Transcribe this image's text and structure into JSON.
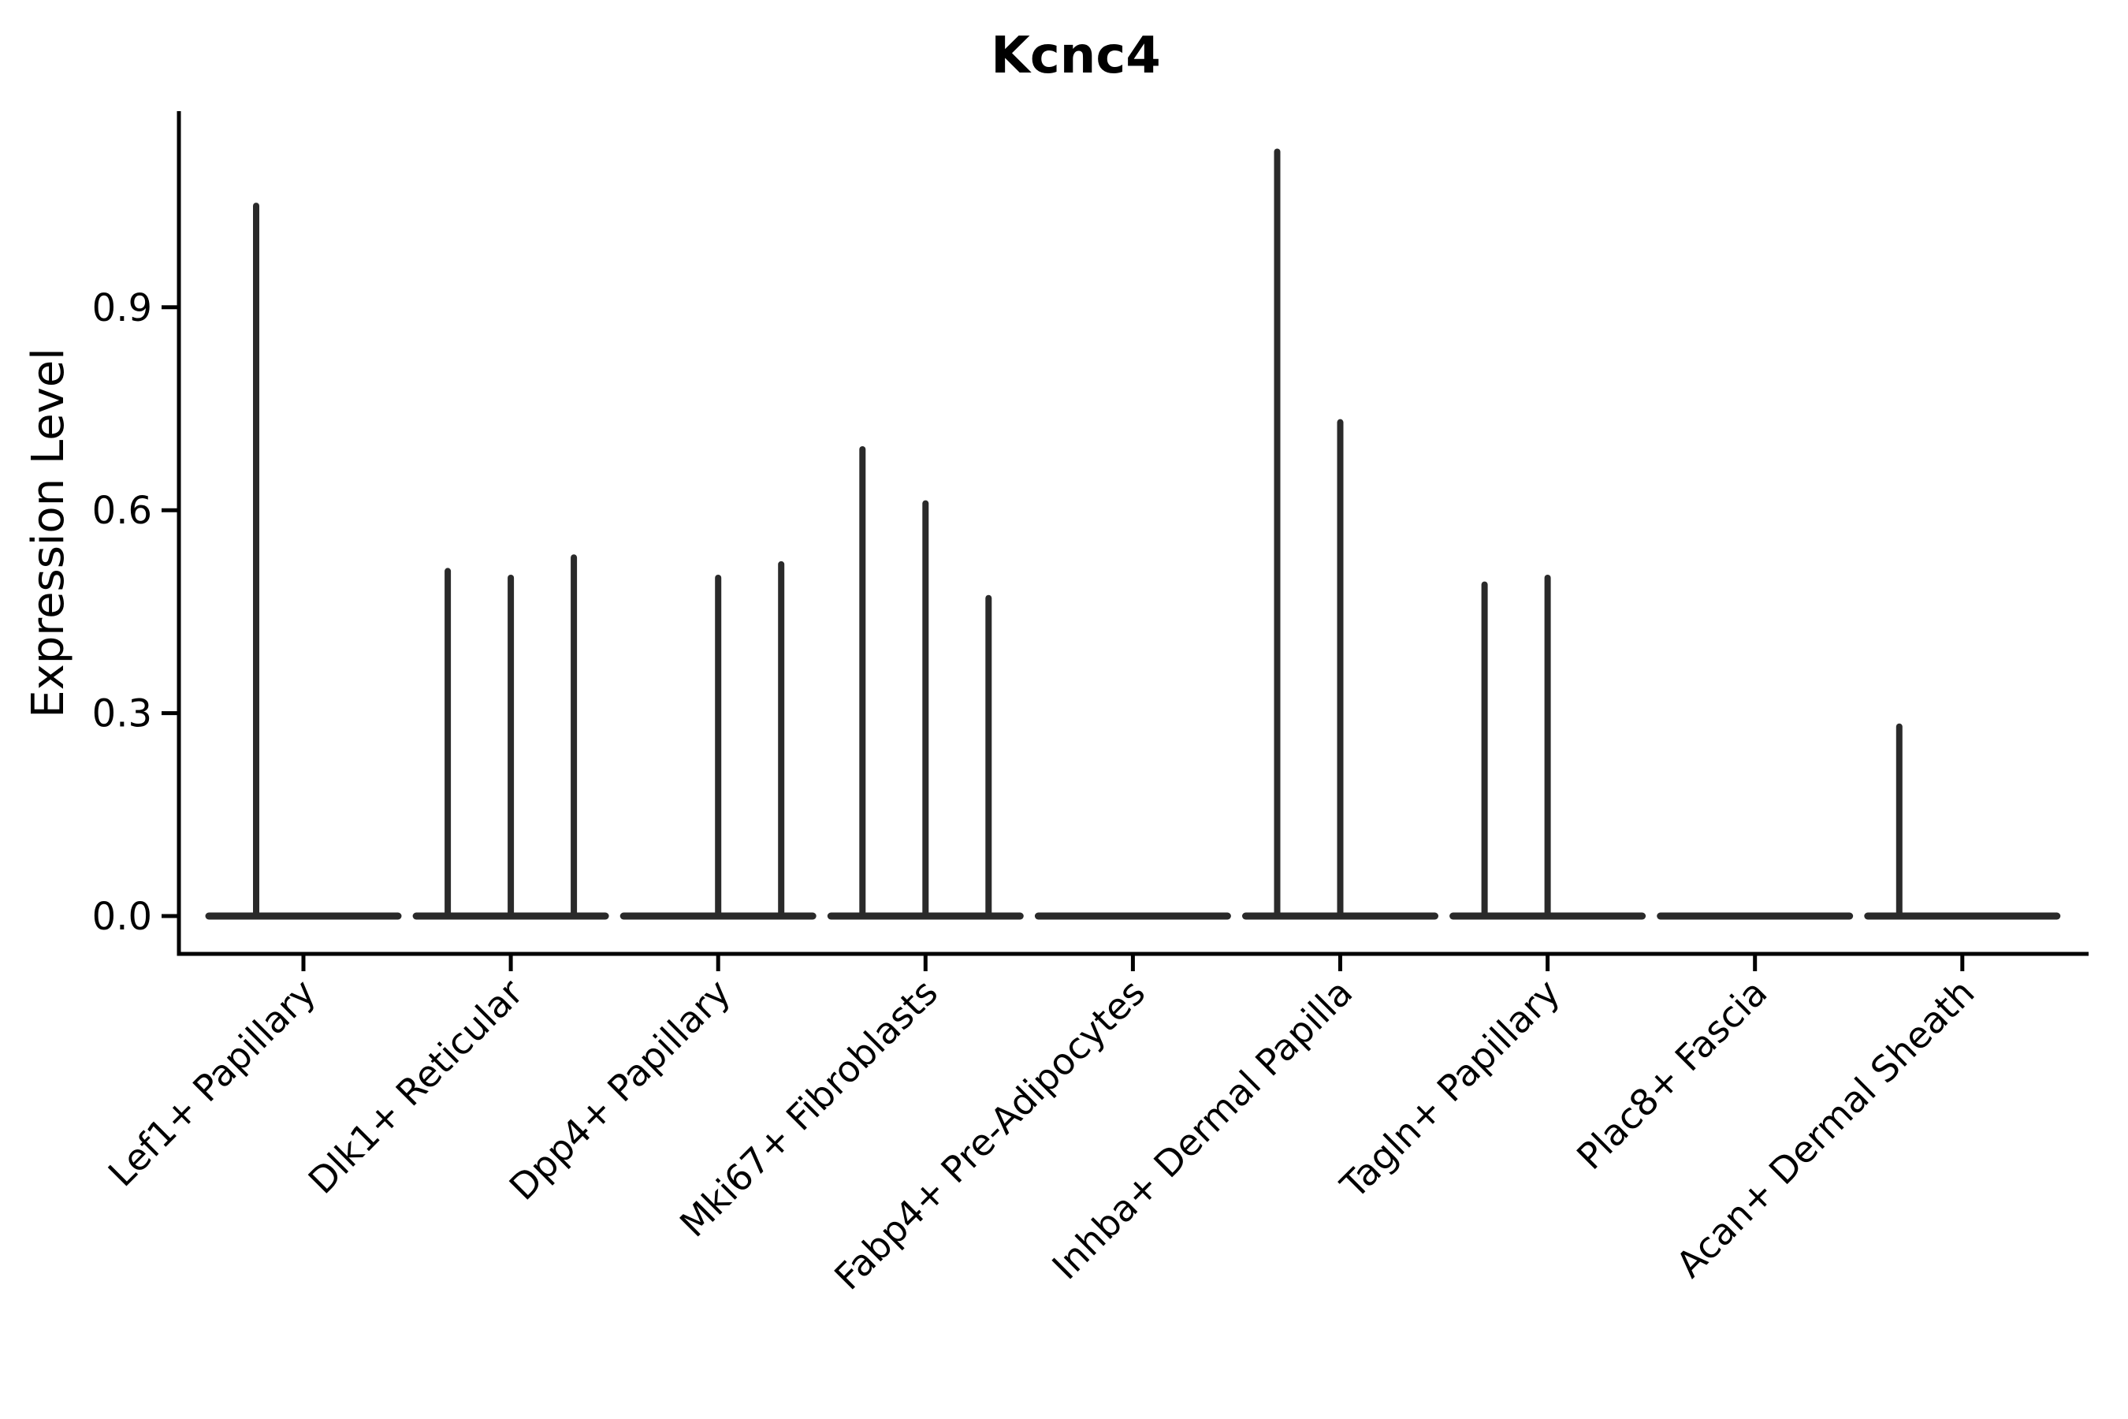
{
  "chart_data": {
    "type": "violin",
    "title": "Kcnc4",
    "ylabel": "Expression Level",
    "xlabel": "",
    "grid": false,
    "legend_position": "none",
    "ylim": [
      0,
      1.19
    ],
    "yticks": [
      "0.0",
      "0.3",
      "0.6",
      "0.9"
    ],
    "ytick_values": [
      0.0,
      0.3,
      0.6,
      0.9
    ],
    "description": "Split violin plot of Kcnc4 expression; most cells at 0 with thin spikes of expressing cells per split violin",
    "categories": [
      {
        "label": "Lef1+ Papillary",
        "splits": 2,
        "spikes": [
          {
            "split": 0,
            "value": 1.05
          }
        ]
      },
      {
        "label": "Dlk1+ Reticular",
        "splits": 3,
        "spikes": [
          {
            "split": 0,
            "value": 0.51
          },
          {
            "split": 1,
            "value": 0.5
          },
          {
            "split": 2,
            "value": 0.53
          }
        ]
      },
      {
        "label": "Dpp4+ Papillary",
        "splits": 3,
        "spikes": [
          {
            "split": 1,
            "value": 0.5
          },
          {
            "split": 2,
            "value": 0.52
          }
        ]
      },
      {
        "label": "Mki67+ Fibroblasts",
        "splits": 3,
        "spikes": [
          {
            "split": 0,
            "value": 0.69
          },
          {
            "split": 1,
            "value": 0.61
          },
          {
            "split": 2,
            "value": 0.47
          }
        ]
      },
      {
        "label": "Fabp4+ Pre-Adipocytes",
        "splits": 3,
        "spikes": []
      },
      {
        "label": "Inhba+ Dermal Papilla",
        "splits": 3,
        "spikes": [
          {
            "split": 0,
            "value": 1.13
          },
          {
            "split": 1,
            "value": 0.73
          }
        ]
      },
      {
        "label": "Tagln+ Papillary",
        "splits": 3,
        "spikes": [
          {
            "split": 0,
            "value": 0.49
          },
          {
            "split": 1,
            "value": 0.5
          }
        ]
      },
      {
        "label": "Plac8+ Fascia",
        "splits": 3,
        "spikes": []
      },
      {
        "label": "Acan+ Dermal Sheath",
        "splits": 3,
        "spikes": [
          {
            "split": 0,
            "value": 0.28
          }
        ]
      }
    ],
    "colors": {
      "violin_stroke": "#2a2a2a",
      "axis": "#000000",
      "text": "#000000",
      "background": "#ffffff"
    }
  }
}
